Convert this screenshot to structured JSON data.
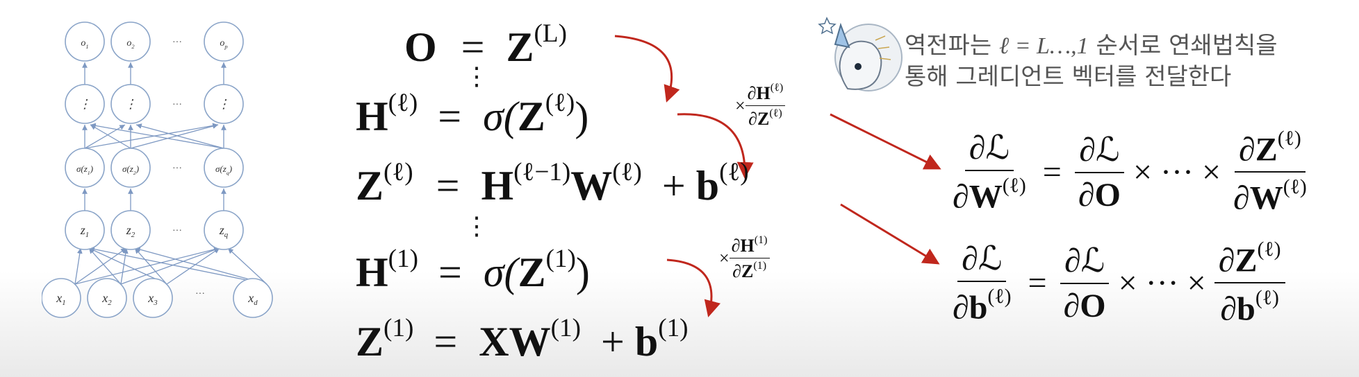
{
  "network": {
    "output_nodes": [
      "o",
      "o",
      "o"
    ],
    "output_subs": [
      "1",
      "2",
      "p"
    ],
    "ellipsis": "···",
    "vdots": "⋮",
    "sigma_nodes": [
      "σ(z",
      "σ(z",
      "σ(z"
    ],
    "sigma_subs": [
      "1",
      "2",
      "q"
    ],
    "z_nodes": [
      "z",
      "z",
      "z"
    ],
    "z_subs": [
      "1",
      "2",
      "q"
    ],
    "x_nodes": [
      "x",
      "x",
      "x",
      "x"
    ],
    "x_subs": [
      "1",
      "2",
      "3",
      "d"
    ]
  },
  "equations": {
    "row1": {
      "lhs": "O",
      "rhs": "Z",
      "rhs_sup": "(L)"
    },
    "row2": {
      "lhs": "H",
      "lhs_sup": "(ℓ)",
      "rhs_pre": "σ(",
      "rhs": "Z",
      "rhs_sup": "(ℓ)",
      "rhs_post": ")"
    },
    "row3": {
      "lhs": "Z",
      "lhs_sup": "(ℓ)",
      "h": "H",
      "h_sup": "(ℓ−1)",
      "w": "W",
      "w_sup": "(ℓ)",
      "plus": "+",
      "b": "b",
      "b_sup": "(ℓ)"
    },
    "row4": {
      "lhs": "H",
      "lhs_sup": "(1)",
      "rhs_pre": "σ(",
      "rhs": "Z",
      "rhs_sup": "(1)",
      "rhs_post": ")"
    },
    "row5": {
      "lhs": "Z",
      "lhs_sup": "(1)",
      "x": "XW",
      "x_sup": "(1)",
      "plus": "+",
      "b": "b",
      "b_sup": "(1)"
    },
    "equals": "=",
    "vdots": "⋮"
  },
  "chain_factors": {
    "f1": {
      "times": "×",
      "num": "∂H",
      "num_sup": "(ℓ)",
      "den": "∂Z",
      "den_sup": "(ℓ)"
    },
    "f2": {
      "times": "×",
      "num": "∂H",
      "num_sup": "(1)",
      "den": "∂Z",
      "den_sup": "(1)"
    }
  },
  "gradients": {
    "w": {
      "lhs_num": "∂ℒ",
      "lhs_den": "∂W",
      "lhs_den_sup": "(ℓ)",
      "eq": "=",
      "m_num": "∂ℒ",
      "m_den": "∂O",
      "dots": "× ··· ×",
      "r_num": "∂Z",
      "r_num_sup": "(ℓ)",
      "r_den": "∂W",
      "r_den_sup": "(ℓ)"
    },
    "b": {
      "lhs_num": "∂ℒ",
      "lhs_den": "∂b",
      "lhs_den_sup": "(ℓ)",
      "eq": "=",
      "m_num": "∂ℒ",
      "m_den": "∂O",
      "dots": "× ··· ×",
      "r_num": "∂Z",
      "r_num_sup": "(ℓ)",
      "r_den": "∂b",
      "r_den_sup": "(ℓ)"
    }
  },
  "caption": {
    "line1_pre": "역전파는 ",
    "line1_math": "ℓ = L…,1",
    "line1_post": " 순서로 연쇄법칙을",
    "line2": "통해 그레디언트 벡터를 전달한다"
  },
  "colors": {
    "arrow": "#c0271d",
    "node_stroke": "#8aa4c8",
    "edge": "#7d98c2"
  }
}
